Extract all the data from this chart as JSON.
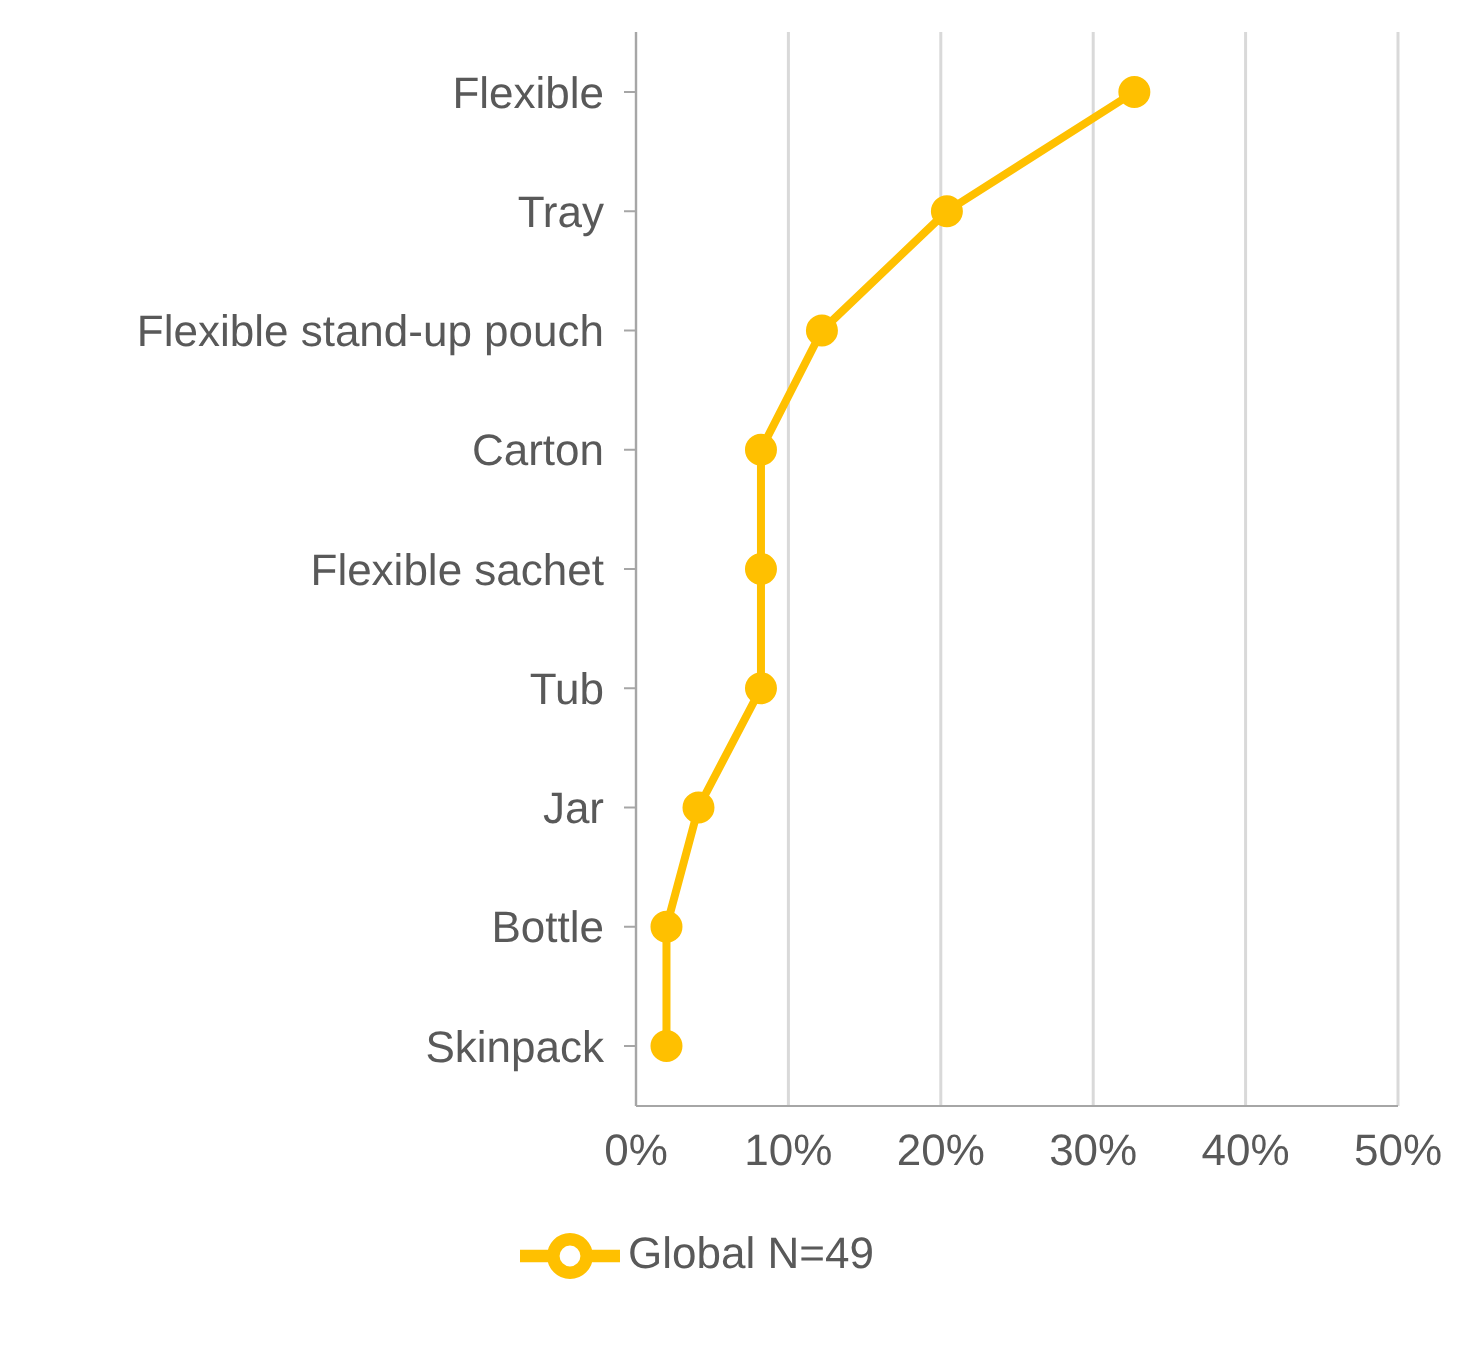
{
  "chart_data": {
    "type": "line",
    "orientation": "horizontal",
    "categories": [
      "Flexible",
      "Tray",
      "Flexible stand-up pouch",
      "Carton",
      "Flexible sachet",
      "Tub",
      "Jar",
      "Bottle",
      "Skinpack"
    ],
    "series": [
      {
        "name": "Global N=49",
        "color": "#ffc000",
        "values": [
          32.7,
          20.4,
          12.2,
          8.2,
          8.2,
          8.2,
          4.1,
          2.0,
          2.0
        ]
      }
    ],
    "xlim": [
      0,
      50
    ],
    "xticks": [
      {
        "value": 0,
        "label": "0%"
      },
      {
        "value": 10,
        "label": "10%"
      },
      {
        "value": 20,
        "label": "20%"
      },
      {
        "value": 30,
        "label": "30%"
      },
      {
        "value": 40,
        "label": "40%"
      },
      {
        "value": 50,
        "label": "50%"
      }
    ],
    "grid": "x",
    "legend": "bottom",
    "marker": "circle",
    "line_style": "solid"
  }
}
